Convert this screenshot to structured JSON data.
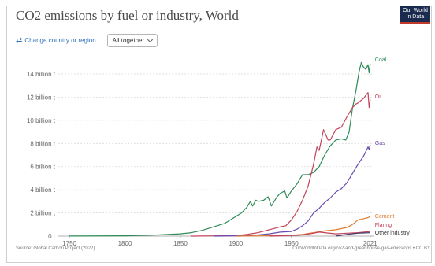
{
  "header": {
    "title": "CO2 emissions by fuel or industry, World",
    "logo_line1": "Our World",
    "logo_line2": "in Data"
  },
  "controls": {
    "change_label": "Change country or region",
    "dropdown_value": "All together"
  },
  "footer": {
    "source": "Source: Global Carbon Project (2022)",
    "license": "OurWorldInData.org/co2-and-greenhouse-gas-emissions • CC BY"
  },
  "chart_data": {
    "type": "line",
    "xlim": [
      1740,
      2024
    ],
    "ylim": [
      0,
      15500000000
    ],
    "x_ticks": [
      1750,
      1800,
      1850,
      1900,
      1950,
      2021
    ],
    "y_ticks": [
      {
        "value": 0,
        "label": "0 t"
      },
      {
        "value": 2000000000,
        "label": "2 billion t"
      },
      {
        "value": 4000000000,
        "label": "4 billion t"
      },
      {
        "value": 6000000000,
        "label": "6 billion t"
      },
      {
        "value": 8000000000,
        "label": "8 billion t"
      },
      {
        "value": 10000000000,
        "label": "10 billion t"
      },
      {
        "value": 12000000000,
        "label": "12 billion t"
      },
      {
        "value": 14000000000,
        "label": "14 billion t"
      }
    ],
    "grid": "horizontal-dotted",
    "legend": "right-line-labels",
    "series": [
      {
        "name": "Coal",
        "color": "#2e8b57",
        "points": [
          [
            1750,
            9000000.0
          ],
          [
            1800,
            30000000.0
          ],
          [
            1830,
            100000000.0
          ],
          [
            1850,
            200000000.0
          ],
          [
            1860,
            300000000.0
          ],
          [
            1870,
            500000000.0
          ],
          [
            1880,
            800000000.0
          ],
          [
            1890,
            1100000000.0
          ],
          [
            1900,
            1700000000.0
          ],
          [
            1905,
            2000000000.0
          ],
          [
            1910,
            2500000000.0
          ],
          [
            1913,
            3000000000.0
          ],
          [
            1915,
            2600000000.0
          ],
          [
            1918,
            3100000000.0
          ],
          [
            1920,
            3000000000.0
          ],
          [
            1925,
            3100000000.0
          ],
          [
            1929,
            3400000000.0
          ],
          [
            1932,
            2600000000.0
          ],
          [
            1937,
            3400000000.0
          ],
          [
            1940,
            3700000000.0
          ],
          [
            1944,
            3900000000.0
          ],
          [
            1946,
            3300000000.0
          ],
          [
            1950,
            3900000000.0
          ],
          [
            1955,
            4500000000.0
          ],
          [
            1960,
            5300000000.0
          ],
          [
            1965,
            5300000000.0
          ],
          [
            1970,
            5500000000.0
          ],
          [
            1975,
            6000000000.0
          ],
          [
            1980,
            7000000000.0
          ],
          [
            1985,
            7800000000.0
          ],
          [
            1990,
            8300000000.0
          ],
          [
            1995,
            8400000000.0
          ],
          [
            1999,
            8300000000.0
          ],
          [
            2002,
            9000000000.0
          ],
          [
            2005,
            11000000000.0
          ],
          [
            2008,
            12500000000.0
          ],
          [
            2011,
            14200000000.0
          ],
          [
            2013,
            15000000000.0
          ],
          [
            2015,
            14600000000.0
          ],
          [
            2017,
            14400000000.0
          ],
          [
            2019,
            14800000000.0
          ],
          [
            2020,
            14100000000.0
          ],
          [
            2021,
            14900000000.0
          ]
        ]
      },
      {
        "name": "Oil",
        "color": "#c2445c",
        "points": [
          [
            1860,
            0.0
          ],
          [
            1880,
            20000000.0
          ],
          [
            1900,
            50000000.0
          ],
          [
            1910,
            150000000.0
          ],
          [
            1920,
            300000000.0
          ],
          [
            1930,
            550000000.0
          ],
          [
            1940,
            800000000.0
          ],
          [
            1945,
            900000000.0
          ],
          [
            1950,
            1400000000.0
          ],
          [
            1955,
            2100000000.0
          ],
          [
            1960,
            3100000000.0
          ],
          [
            1965,
            4300000000.0
          ],
          [
            1970,
            6200000000.0
          ],
          [
            1973,
            7700000000.0
          ],
          [
            1975,
            7400000000.0
          ],
          [
            1979,
            9200000000.0
          ],
          [
            1983,
            8300000000.0
          ],
          [
            1985,
            8300000000.0
          ],
          [
            1990,
            9200000000.0
          ],
          [
            1995,
            9400000000.0
          ],
          [
            2000,
            10300000000.0
          ],
          [
            2005,
            11100000000.0
          ],
          [
            2008,
            11400000000.0
          ],
          [
            2010,
            11500000000.0
          ],
          [
            2015,
            11900000000.0
          ],
          [
            2019,
            12400000000.0
          ],
          [
            2020,
            11100000000.0
          ],
          [
            2021,
            11800000000.0
          ]
        ]
      },
      {
        "name": "Gas",
        "color": "#6a4bb0",
        "points": [
          [
            1880,
            0.0
          ],
          [
            1900,
            30000000.0
          ],
          [
            1920,
            100000000.0
          ],
          [
            1930,
            200000000.0
          ],
          [
            1940,
            350000000.0
          ],
          [
            1950,
            400000000.0
          ],
          [
            1955,
            600000000.0
          ],
          [
            1960,
            900000000.0
          ],
          [
            1965,
            1300000000.0
          ],
          [
            1970,
            2000000000.0
          ],
          [
            1975,
            2400000000.0
          ],
          [
            1980,
            2900000000.0
          ],
          [
            1985,
            3300000000.0
          ],
          [
            1990,
            3800000000.0
          ],
          [
            1995,
            4100000000.0
          ],
          [
            2000,
            4600000000.0
          ],
          [
            2005,
            5400000000.0
          ],
          [
            2010,
            6200000000.0
          ],
          [
            2015,
            6900000000.0
          ],
          [
            2019,
            7700000000.0
          ],
          [
            2020,
            7500000000.0
          ],
          [
            2021,
            7900000000.0
          ]
        ]
      },
      {
        "name": "Cement",
        "color": "#e07b2c",
        "points": [
          [
            1900,
            0.0
          ],
          [
            1920,
            20000000.0
          ],
          [
            1940,
            40000000.0
          ],
          [
            1950,
            80000000.0
          ],
          [
            1960,
            150000000.0
          ],
          [
            1970,
            300000000.0
          ],
          [
            1980,
            450000000.0
          ],
          [
            1990,
            550000000.0
          ],
          [
            2000,
            750000000.0
          ],
          [
            2005,
            1000000000.0
          ],
          [
            2010,
            1400000000.0
          ],
          [
            2015,
            1500000000.0
          ],
          [
            2019,
            1600000000.0
          ],
          [
            2021,
            1700000000.0
          ]
        ]
      },
      {
        "name": "Flaring",
        "color": "#c2445c",
        "points": [
          [
            1930,
            0.0
          ],
          [
            1950,
            50000000.0
          ],
          [
            1960,
            100000000.0
          ],
          [
            1970,
            250000000.0
          ],
          [
            1975,
            350000000.0
          ],
          [
            1980,
            300000000.0
          ],
          [
            1990,
            200000000.0
          ],
          [
            2000,
            250000000.0
          ],
          [
            2010,
            300000000.0
          ],
          [
            2021,
            400000000.0
          ]
        ]
      },
      {
        "name": "Other industry",
        "color": "#3d3d6b",
        "points": [
          [
            1990,
            0.0
          ],
          [
            2000,
            150000000.0
          ],
          [
            2010,
            250000000.0
          ],
          [
            2021,
            300000000.0
          ]
        ]
      }
    ]
  }
}
